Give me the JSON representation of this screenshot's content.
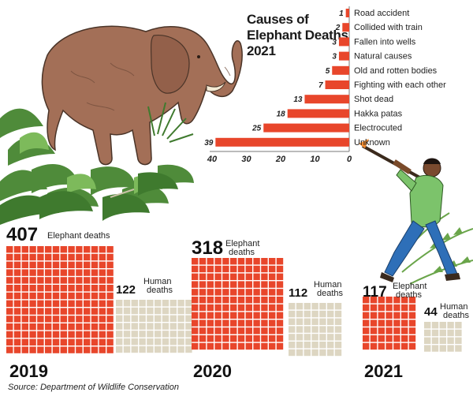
{
  "chart_data": [
    {
      "type": "bar",
      "orientation": "horizontal",
      "title": "Causes of Elephant Deaths 2021",
      "categories": [
        "Road accident",
        "Collided with train",
        "Fallen into wells",
        "Natural causes",
        "Old and rotten bodies",
        "Fighting with each other",
        "Shot dead",
        "Hakka patas",
        "Electrocuted",
        "Unknown"
      ],
      "values": [
        1,
        2,
        3,
        3,
        5,
        7,
        13,
        18,
        25,
        39
      ],
      "xticks": [
        40,
        30,
        20,
        10,
        0
      ],
      "xlim": [
        0,
        40
      ],
      "bar_color": "#e8462b"
    },
    {
      "type": "waffle",
      "years": [
        {
          "year": "2019",
          "elephant_deaths": 407,
          "elephant_label": "Elephant deaths",
          "human_deaths": 122,
          "human_label": "Human deaths"
        },
        {
          "year": "2020",
          "elephant_deaths": 318,
          "elephant_label": "Elephant deaths",
          "human_deaths": 112,
          "human_label": "Human deaths"
        },
        {
          "year": "2021",
          "elephant_deaths": 117,
          "elephant_label": "Elephant deaths",
          "human_deaths": 44,
          "human_label": "Human deaths"
        }
      ],
      "elephant_color": "#e8462b",
      "human_color": "#ddd6c2"
    }
  ],
  "source": "Source: Department of Wildlife Conservation",
  "title_lines": [
    "Causes of",
    "Elephant Deaths",
    "2021"
  ]
}
